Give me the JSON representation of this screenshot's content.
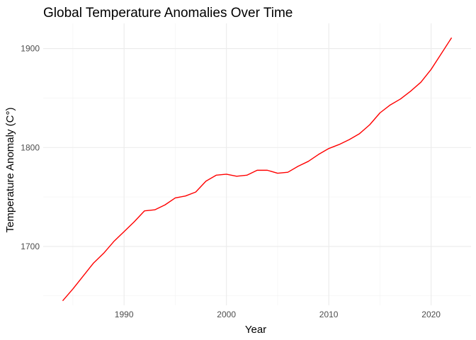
{
  "chart_data": {
    "type": "line",
    "title": "Global Temperature Anomalies Over Time",
    "xlabel": "Year",
    "ylabel": "Temperature Anomaly (C°)",
    "xlim": [
      1982.1,
      2023.9
    ],
    "ylim": [
      1640.5,
      1925.5
    ],
    "x_ticks": [
      1990,
      2000,
      2010,
      2020
    ],
    "x_tick_labels": [
      "1990",
      "2000",
      "2010",
      "2020"
    ],
    "x_minor_ticks": [
      1985,
      1995,
      2005,
      2015
    ],
    "y_ticks": [
      1700,
      1800,
      1900
    ],
    "y_tick_labels": [
      "1700",
      "1800",
      "1900"
    ],
    "y_minor_ticks": [
      1650,
      1750,
      1850
    ],
    "grid": true,
    "legend": "none",
    "series": [
      {
        "color": "#ff0000",
        "x": [
          1984,
          1985,
          1986,
          1987,
          1988,
          1989,
          1990,
          1991,
          1992,
          1993,
          1994,
          1995,
          1996,
          1997,
          1998,
          1999,
          2000,
          2001,
          2002,
          2003,
          2004,
          2005,
          2006,
          2007,
          2008,
          2009,
          2010,
          2011,
          2012,
          2013,
          2014,
          2015,
          2016,
          2017,
          2018,
          2019,
          2020,
          2021,
          2022
        ],
        "y": [
          1645,
          1657,
          1670,
          1683,
          1693,
          1705,
          1715,
          1725,
          1736,
          1737,
          1742,
          1749,
          1751,
          1755,
          1766,
          1772,
          1773,
          1771,
          1772,
          1777,
          1777,
          1774,
          1775,
          1781,
          1786,
          1793,
          1799,
          1803,
          1808,
          1814,
          1823,
          1835,
          1843,
          1849,
          1857,
          1866,
          1879,
          1895,
          1911
        ]
      }
    ]
  }
}
